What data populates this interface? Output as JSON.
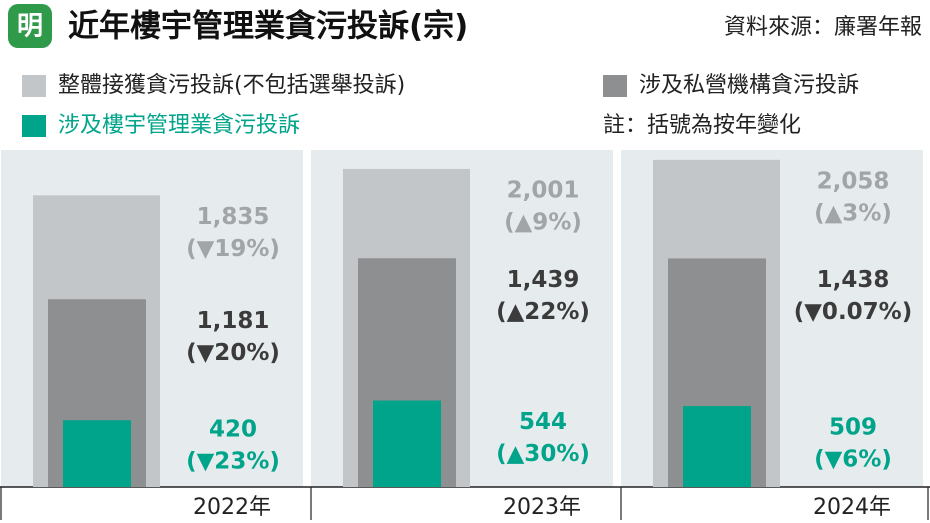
{
  "chart_data": {
    "type": "overlap-bar",
    "logo": "明",
    "title": "近年樓宇管理業貪污投訴(宗)",
    "source": "資料來源：廉署年報",
    "note": "註：括號為按年變化",
    "categories": [
      "2022年",
      "2023年",
      "2024年"
    ],
    "ylim": [
      0,
      2120
    ],
    "series": [
      {
        "name": "整體接獲貪污投訴(不包括選舉投訴)",
        "color": "#c3c6c9",
        "label_color": "#a2a5a8",
        "values": [
          1835,
          2001,
          2058
        ],
        "value_labels": [
          "1,835",
          "2,001",
          "2,058"
        ],
        "changes": [
          "(▼19%)",
          "(▲9%)",
          "(▲3%)"
        ]
      },
      {
        "name": "涉及私營機構貪污投訴",
        "color": "#8e8f91",
        "label_color": "#3b3b3b",
        "values": [
          1181,
          1439,
          1438
        ],
        "value_labels": [
          "1,181",
          "1,439",
          "1,438"
        ],
        "changes": [
          "(▼20%)",
          "(▲22%)",
          "(▼0.07%)"
        ]
      },
      {
        "name": "涉及樓宇管理業貪污投訴",
        "color": "#00a48a",
        "label_color": "#00a48a",
        "values": [
          420,
          544,
          509
        ],
        "changes": [
          "(▼23%)",
          "(▲30%)",
          "(▼6%)"
        ]
      }
    ]
  }
}
